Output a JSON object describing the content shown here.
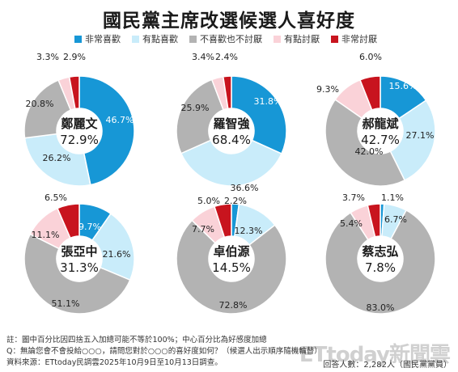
{
  "title": "國民黨主席改選候選人喜好度",
  "legend": [
    {
      "label": "非常喜歡",
      "color": "#1797d6"
    },
    {
      "label": "有點喜歡",
      "color": "#c9ecfa"
    },
    {
      "label": "不喜歡也不討厭",
      "color": "#b3b3b3"
    },
    {
      "label": "有點討厭",
      "color": "#fad2d8"
    },
    {
      "label": "非常討厭",
      "color": "#c8141e"
    }
  ],
  "chart_data": [
    {
      "type": "pie",
      "candidate": "鄭麗文",
      "center_value": "72.9%",
      "values": [
        46.7,
        26.2,
        20.8,
        3.3,
        2.9
      ]
    },
    {
      "type": "pie",
      "candidate": "羅智強",
      "center_value": "68.4%",
      "values": [
        31.8,
        36.6,
        25.9,
        3.4,
        2.4
      ]
    },
    {
      "type": "pie",
      "candidate": "郝龍斌",
      "center_value": "42.7%",
      "values": [
        15.6,
        27.1,
        42.0,
        9.3,
        6.0
      ]
    },
    {
      "type": "pie",
      "candidate": "張亞中",
      "center_value": "31.3%",
      "values": [
        9.7,
        21.6,
        51.1,
        11.1,
        6.5
      ]
    },
    {
      "type": "pie",
      "candidate": "卓伯源",
      "center_value": "14.5%",
      "values": [
        2.2,
        12.3,
        72.8,
        7.7,
        5.0
      ]
    },
    {
      "type": "pie",
      "candidate": "蔡志弘",
      "center_value": "7.8%",
      "values": [
        1.1,
        6.7,
        83.0,
        5.4,
        3.7
      ]
    }
  ],
  "notes": [
    "註：圖中百分比因四捨五入加總可能不等於100%；中心百分比為好感度加總",
    "Q：無論您會不會投給○○○，請問您對於○○○的喜好度如何？（候選人出示順序隨機輪替）",
    "資料來源：ETtoday民調雲2025年10月9日至10月13日調查。"
  ],
  "sample": "回答人數：2,282人（國民黨黨員）",
  "watermark": "ETtoday新聞雲"
}
